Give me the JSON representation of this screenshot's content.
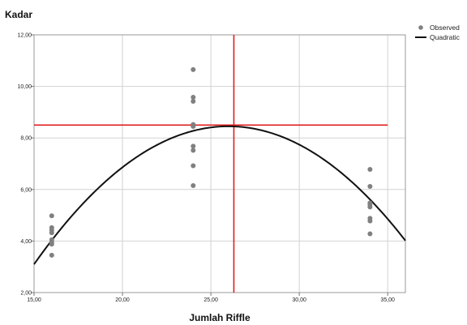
{
  "chart_data": {
    "type": "scatter",
    "ylabel": "Kadar",
    "xlabel": "Jumlah Riffle",
    "xlim": [
      15,
      36
    ],
    "ylim": [
      2,
      12
    ],
    "x_ticks": [
      "15,00",
      "20,00",
      "25,00",
      "30,00",
      "35,00"
    ],
    "x_tick_values": [
      15,
      20,
      25,
      30,
      35
    ],
    "y_ticks": [
      "2,00",
      "4,00",
      "6,00",
      "8,00",
      "10,00",
      "12,00"
    ],
    "y_tick_values": [
      2,
      4,
      6,
      8,
      10,
      12
    ],
    "grid": true,
    "legend_position": "top-right",
    "series": [
      {
        "name": "Observed",
        "kind": "points",
        "color": "#808080",
        "x": [
          16,
          16,
          16,
          16,
          16,
          16,
          16,
          16,
          24,
          24,
          24,
          24,
          24,
          24,
          24,
          24,
          24,
          24,
          34,
          34,
          34,
          34,
          34,
          34,
          34,
          34
        ],
        "y": [
          4.98,
          4.52,
          4.42,
          4.32,
          4.05,
          3.95,
          3.88,
          3.45,
          10.65,
          9.58,
          9.42,
          8.52,
          8.45,
          7.68,
          7.52,
          6.92,
          6.15,
          8.45,
          6.78,
          6.12,
          5.48,
          5.42,
          5.32,
          4.88,
          4.78,
          4.28
        ]
      },
      {
        "name": "Quadratic",
        "kind": "curve",
        "color": "#111111",
        "coefficients": {
          "a": -0.0443,
          "b": 2.303,
          "c": -21.48
        }
      }
    ],
    "reference_lines": [
      {
        "orientation": "horizontal",
        "y": 8.5,
        "x_from": 15,
        "x_to": 35,
        "color": "#e01e1e"
      },
      {
        "orientation": "vertical",
        "x": 26.3,
        "y_from": 2,
        "y_to": 12,
        "color": "#e01e1e"
      }
    ]
  }
}
